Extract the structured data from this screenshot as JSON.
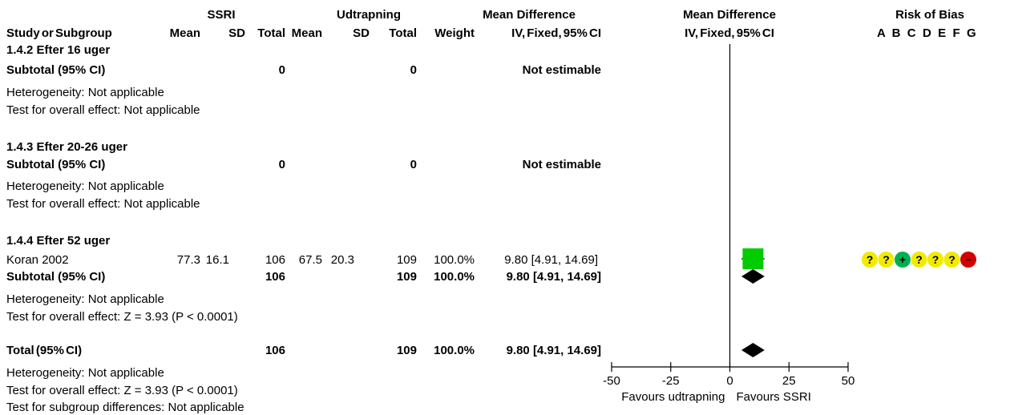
{
  "header": {
    "group1": "SSRI",
    "group2": "Udtrapning",
    "md_title": "Mean Difference",
    "md_method": "IV, Fixed, 95% CI",
    "plot_title": "Mean Difference",
    "plot_method": "IV, Fixed, 95% CI",
    "rob_title": "Risk of Bias",
    "rob_letters": "A  B  C  D  E  F  G",
    "col_study": "Study or Subgroup",
    "col_mean": "Mean",
    "col_sd": "SD",
    "col_total": "Total",
    "col_weight": "Weight"
  },
  "sections": [
    {
      "title": "1.4.2 Efter 16 uger",
      "subtotal": {
        "label": "Subtotal (95% CI)",
        "n1": "0",
        "n2": "0",
        "weight": "",
        "ci": "Not estimable"
      },
      "heterogeneity": "Heterogeneity: Not applicable",
      "overall": "Test for overall effect: Not applicable"
    },
    {
      "title": "1.4.3 Efter 20-26 uger",
      "subtotal": {
        "label": "Subtotal (95% CI)",
        "n1": "0",
        "n2": "0",
        "weight": "",
        "ci": "Not estimable"
      },
      "heterogeneity": "Heterogeneity: Not applicable",
      "overall": "Test for overall effect: Not applicable"
    },
    {
      "title": "1.4.4 Efter 52 uger",
      "study": {
        "name": "Koran 2002",
        "mean1": "77.3",
        "sd1": "16.1",
        "n1": "106",
        "mean2": "67.5",
        "sd2": "20.3",
        "n2": "109",
        "weight": "100.0%",
        "ci": "9.80 [4.91, 14.69]"
      },
      "subtotal": {
        "label": "Subtotal (95% CI)",
        "n1": "106",
        "n2": "109",
        "weight": "100.0%",
        "ci": "9.80 [4.91, 14.69]"
      },
      "heterogeneity": "Heterogeneity: Not applicable",
      "overall": "Test for overall effect: Z = 3.93 (P < 0.0001)"
    }
  ],
  "total": {
    "label": "Total (95% CI)",
    "n1": "106",
    "n2": "109",
    "weight": "100.0%",
    "ci": "9.80 [4.91, 14.69]",
    "heterogeneity": "Heterogeneity: Not applicable",
    "overall": "Test for overall effect: Z = 3.93 (P < 0.0001)",
    "subgroup": "Test for subgroup differences: Not applicable"
  },
  "rob_symbols": [
    "?",
    "?",
    "+",
    "?",
    "?",
    "?",
    "−"
  ],
  "colors": {
    "unclear": "#f2ea00",
    "low": "#00b050",
    "high": "#d20000",
    "study_box": "#00cc00",
    "diamond": "#000000"
  },
  "chart_data": {
    "type": "forest",
    "xlim": [
      -50,
      50
    ],
    "ticks": [
      -50,
      -25,
      0,
      25,
      50
    ],
    "tick_labels": [
      "-50",
      "-25",
      "0",
      "25",
      "50"
    ],
    "favours_left": "Favours udtrapning",
    "favours_right": "Favours SSRI",
    "estimates": [
      {
        "row": "Koran 2002",
        "kind": "study",
        "est": 9.8,
        "lo": 4.91,
        "hi": 14.69,
        "weight": 100.0
      },
      {
        "row": "Subtotal 1.4.4",
        "kind": "diamond",
        "est": 9.8,
        "lo": 4.91,
        "hi": 14.69
      },
      {
        "row": "Total",
        "kind": "diamond",
        "est": 9.8,
        "lo": 4.91,
        "hi": 14.69
      }
    ],
    "risk_of_bias": {
      "domains": [
        "A",
        "B",
        "C",
        "D",
        "E",
        "F",
        "G"
      ],
      "Koran 2002": [
        "unclear",
        "unclear",
        "low",
        "unclear",
        "unclear",
        "unclear",
        "high"
      ]
    }
  }
}
